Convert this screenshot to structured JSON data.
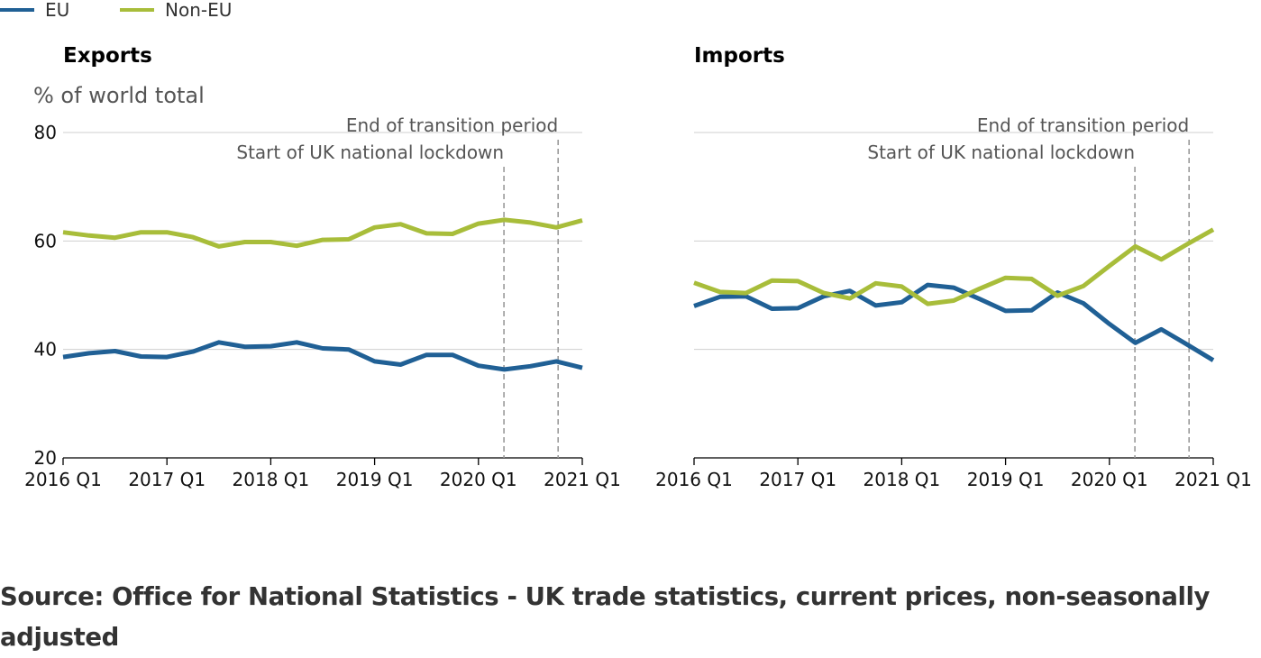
{
  "legend": [
    {
      "name": "EU",
      "color": "#206095"
    },
    {
      "name": "Non-EU",
      "color": "#a8bd3a"
    }
  ],
  "source_text": "Source: Office for National Statistics - UK trade statistics, current prices, non-seasonally adjusted",
  "chart_data": [
    {
      "type": "line",
      "title": "Exports",
      "ylabel": "% of world total",
      "ylim": [
        20,
        80
      ],
      "yticks": [
        "20",
        "40",
        "60",
        "80"
      ],
      "xticks": [
        "2016 Q1",
        "2017 Q1",
        "2018 Q1",
        "2019 Q1",
        "2020 Q1",
        "2021 Q1"
      ],
      "x": [
        "2016 Q1",
        "2016 Q2",
        "2016 Q3",
        "2016 Q4",
        "2017 Q1",
        "2017 Q2",
        "2017 Q3",
        "2017 Q4",
        "2018 Q1",
        "2018 Q2",
        "2018 Q3",
        "2018 Q4",
        "2019 Q1",
        "2019 Q2",
        "2019 Q3",
        "2019 Q4",
        "2020 Q1",
        "2020 Q2",
        "2020 Q3",
        "2020 Q4",
        "2021 Q1"
      ],
      "series": [
        {
          "name": "EU",
          "color": "#206095",
          "values": [
            38.6,
            39.3,
            39.7,
            38.7,
            38.6,
            39.6,
            41.3,
            40.5,
            40.6,
            41.3,
            40.2,
            40.0,
            37.8,
            37.2,
            39.0,
            39.0,
            37.0,
            36.3,
            36.9,
            37.8,
            36.6
          ]
        },
        {
          "name": "Non-EU",
          "color": "#a8bd3a",
          "values": [
            61.6,
            61.0,
            60.6,
            61.6,
            61.6,
            60.7,
            59.0,
            59.8,
            59.8,
            59.1,
            60.2,
            60.3,
            62.5,
            63.1,
            61.4,
            61.3,
            63.2,
            63.9,
            63.4,
            62.5,
            63.8
          ]
        }
      ],
      "annotations": [
        {
          "label": "Start of UK national lockdown",
          "x": "2020 Q2"
        },
        {
          "label": "End of transition period",
          "x": "2020 Q4"
        }
      ]
    },
    {
      "type": "line",
      "title": "Imports",
      "ylabel": "",
      "ylim": [
        20,
        80
      ],
      "yticks": [],
      "xticks": [
        "2016 Q1",
        "2017 Q1",
        "2018 Q1",
        "2019 Q1",
        "2020 Q1",
        "2021 Q1"
      ],
      "x": [
        "2016 Q1",
        "2016 Q2",
        "2016 Q3",
        "2016 Q4",
        "2017 Q1",
        "2017 Q2",
        "2017 Q3",
        "2017 Q4",
        "2018 Q1",
        "2018 Q2",
        "2018 Q3",
        "2018 Q4",
        "2019 Q1",
        "2019 Q2",
        "2019 Q3",
        "2019 Q4",
        "2020 Q1",
        "2020 Q2",
        "2020 Q3",
        "2020 Q4",
        "2021 Q1"
      ],
      "series": [
        {
          "name": "EU",
          "color": "#206095",
          "values": [
            48.0,
            49.7,
            49.8,
            47.5,
            47.6,
            49.8,
            50.8,
            48.1,
            48.7,
            51.9,
            51.4,
            49.3,
            47.1,
            47.2,
            50.5,
            48.5,
            44.7,
            41.2,
            43.7,
            40.9,
            38.0
          ]
        },
        {
          "name": "Non-EU",
          "color": "#a8bd3a",
          "values": [
            52.3,
            50.6,
            50.4,
            52.7,
            52.6,
            50.4,
            49.4,
            52.2,
            51.6,
            48.4,
            49.0,
            51.2,
            53.2,
            53.0,
            49.9,
            51.7,
            55.4,
            59.0,
            56.6,
            59.4,
            62.1
          ]
        }
      ],
      "annotations": [
        {
          "label": "Start of UK national lockdown",
          "x": "2020 Q2"
        },
        {
          "label": "End of transition period",
          "x": "2020 Q4"
        }
      ]
    }
  ]
}
